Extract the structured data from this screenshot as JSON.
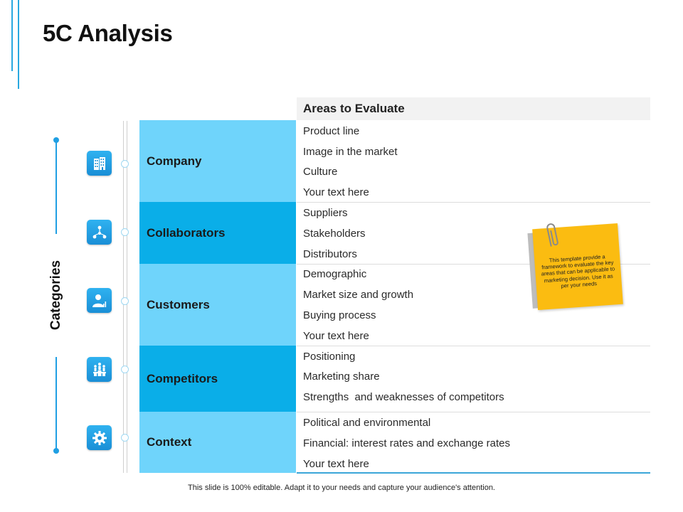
{
  "title": "5C Analysis",
  "axis_label": "Categories",
  "header": "Areas to Evaluate",
  "categories": [
    {
      "name": "Company",
      "icon": "building-icon",
      "items": [
        "Product line",
        "Image in the market",
        "Culture",
        "Your text here"
      ]
    },
    {
      "name": "Collaborators",
      "icon": "network-icon",
      "items": [
        "Suppliers",
        "Stakeholders",
        "Distributors"
      ]
    },
    {
      "name": "Customers",
      "icon": "user-chart-icon",
      "items": [
        "Demographic",
        "Market size and growth",
        "Buying process",
        "Your text here"
      ]
    },
    {
      "name": "Competitors",
      "icon": "podium-people-icon",
      "items": [
        "Positioning",
        "Marketing share",
        "Strengths  and weaknesses of competitors"
      ]
    },
    {
      "name": "Context",
      "icon": "gear-icon",
      "items": [
        "Political and environmental",
        "Financial: interest rates and exchange rates",
        "Your text here"
      ]
    }
  ],
  "note": "This template provide a framework to evaluate the key areas that can be applicable to marketing decision. Use it as per your needs",
  "footer": "This slide is 100% editable. Adapt it to your needs and capture your audience's attention.",
  "colors": {
    "accent": "#1f9fe3",
    "cell_light": "#6fd4fb",
    "cell_dark": "#0aaee8",
    "note": "#fbbc11"
  }
}
